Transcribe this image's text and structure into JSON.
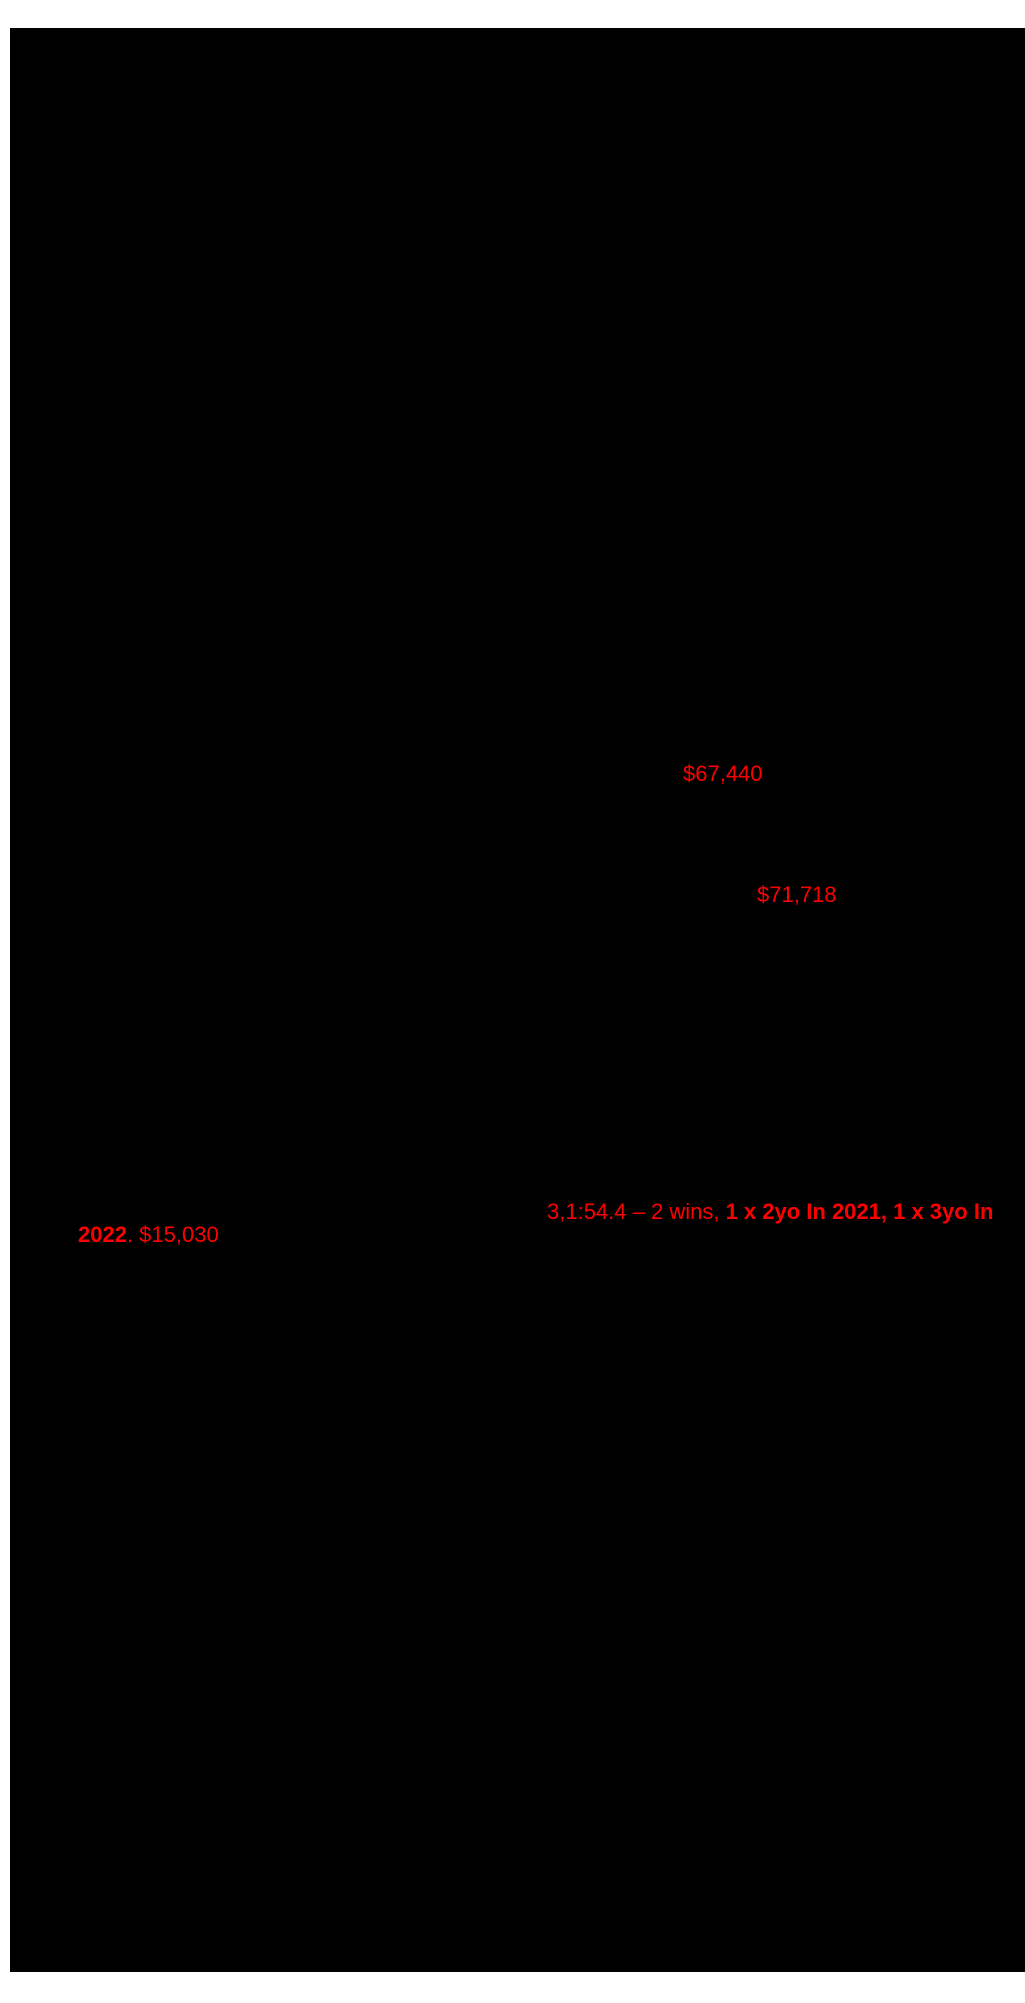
{
  "document": {
    "type": "scanned-catalogue-page",
    "background_color": "#ffffff",
    "page_fill_color": "#000000",
    "highlight_text_color": "#ff0000"
  },
  "red_text": {
    "earnings_first": "$67,440",
    "earnings_second": "$71,718",
    "race_record_line1_regular": "3,1:54.4 – 2 wins, ",
    "race_record_line1_bold": "1 x 2yo In 2021, 1 x 3yo In",
    "race_record_line2_bold": "2022",
    "race_record_line2_regular": ". $15,030"
  }
}
